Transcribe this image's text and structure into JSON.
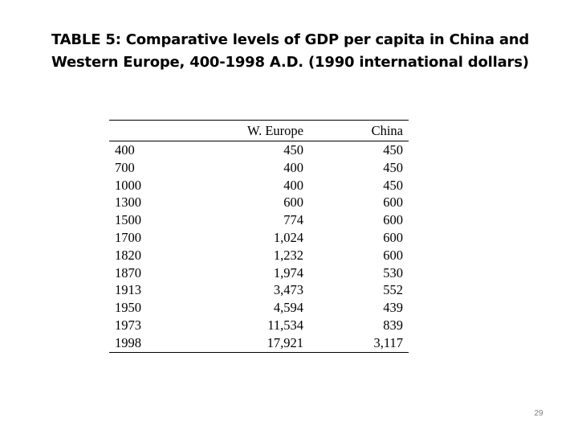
{
  "slide": {
    "title_line1": "TABLE 5: Comparative levels of GDP per capita in China and",
    "title_line2": "Western Europe, 400-1998 A.D. (1990 international dollars)",
    "page_number": "29"
  },
  "table": {
    "headers": [
      "",
      "W. Europe",
      "China"
    ],
    "rows": [
      [
        "400",
        "450",
        "450"
      ],
      [
        "700",
        "400",
        "450"
      ],
      [
        "1000",
        "400",
        "450"
      ],
      [
        "1300",
        "600",
        "600"
      ],
      [
        "1500",
        "774",
        "600"
      ],
      [
        "1700",
        "1,024",
        "600"
      ],
      [
        "1820",
        "1,232",
        "600"
      ],
      [
        "1870",
        "1,974",
        "530"
      ],
      [
        "1913",
        "3,473",
        "552"
      ],
      [
        "1950",
        "4,594",
        "439"
      ],
      [
        "1973",
        "11,534",
        "839"
      ],
      [
        "1998",
        "17,921",
        "3,117"
      ]
    ]
  }
}
